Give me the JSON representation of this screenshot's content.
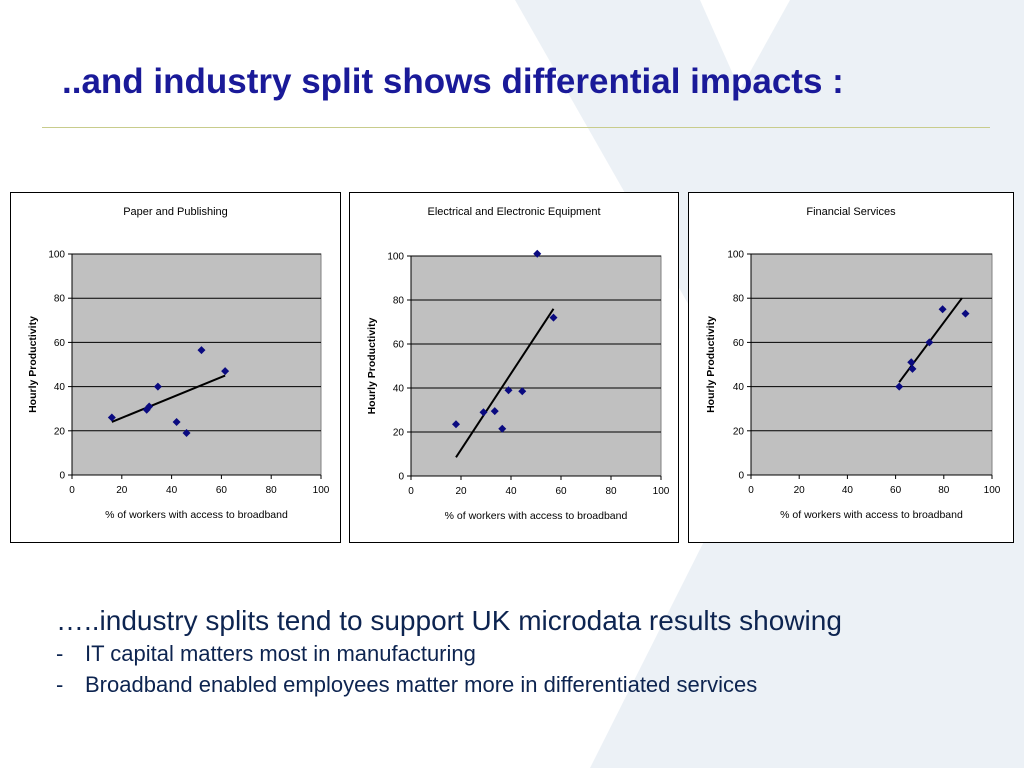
{
  "slide": {
    "title": "..and industry split shows differential impacts  :",
    "lead_text": "…..industry splits tend to support UK microdata results showing",
    "bullets": [
      {
        "marker": "-",
        "text": "IT capital matters most in manufacturing"
      },
      {
        "marker": "-",
        "text": "Broadband enabled employees matter more in differentiated services"
      }
    ]
  },
  "colors": {
    "title": "#1a1a99",
    "body_text": "#0d2450",
    "plot_bg": "#c0c0c0",
    "marker": "#0a0a80",
    "trendline": "#000000",
    "rule": "#c8cc8c",
    "background_shape": "#dde5ee"
  },
  "chart_data": [
    {
      "type": "scatter",
      "title": "Paper and Publishing",
      "xlabel": "% of workers with access to broadband",
      "ylabel": "Hourly Productivity",
      "xlim": [
        0,
        100
      ],
      "ylim": [
        0,
        100
      ],
      "xticks": [
        0,
        20,
        40,
        60,
        80,
        100
      ],
      "yticks": [
        0,
        20,
        40,
        60,
        80,
        100
      ],
      "grid": "horizontal",
      "points": [
        [
          16,
          26
        ],
        [
          30,
          29.5
        ],
        [
          31,
          31
        ],
        [
          34.5,
          40
        ],
        [
          42,
          24
        ],
        [
          46,
          19
        ],
        [
          52,
          56.5
        ],
        [
          61.5,
          47
        ]
      ],
      "trendline": [
        [
          16,
          24
        ],
        [
          61.5,
          45
        ]
      ]
    },
    {
      "type": "scatter",
      "title": "Electrical and Electronic Equipment",
      "xlabel": "% of workers with access to broadband",
      "ylabel": "Hourly Productivity",
      "xlim": [
        0,
        100
      ],
      "ylim": [
        0,
        100
      ],
      "xticks": [
        0,
        20,
        40,
        60,
        80,
        100
      ],
      "yticks": [
        0,
        20,
        40,
        60,
        80,
        100
      ],
      "grid": "horizontal",
      "points": [
        [
          18,
          23.5
        ],
        [
          29,
          29
        ],
        [
          33.5,
          29.5
        ],
        [
          36.5,
          21.5
        ],
        [
          39,
          39
        ],
        [
          44.5,
          38.5
        ],
        [
          50.5,
          101
        ],
        [
          57,
          72
        ]
      ],
      "trendline": [
        [
          18,
          8.5
        ],
        [
          57,
          76
        ]
      ]
    },
    {
      "type": "scatter",
      "title": "Financial Services",
      "xlabel": "% of workers with access to broadband",
      "ylabel": "Hourly Productivity",
      "xlim": [
        0,
        100
      ],
      "ylim": [
        0,
        100
      ],
      "xticks": [
        0,
        20,
        40,
        60,
        80,
        100
      ],
      "yticks": [
        0,
        20,
        40,
        60,
        80,
        100
      ],
      "grid": "horizontal",
      "points": [
        [
          61.5,
          40
        ],
        [
          66.5,
          51
        ],
        [
          67,
          48
        ],
        [
          74,
          60
        ],
        [
          79.5,
          75
        ],
        [
          89,
          73
        ]
      ],
      "trendline": [
        [
          61.5,
          42
        ],
        [
          87.5,
          80
        ]
      ]
    }
  ]
}
